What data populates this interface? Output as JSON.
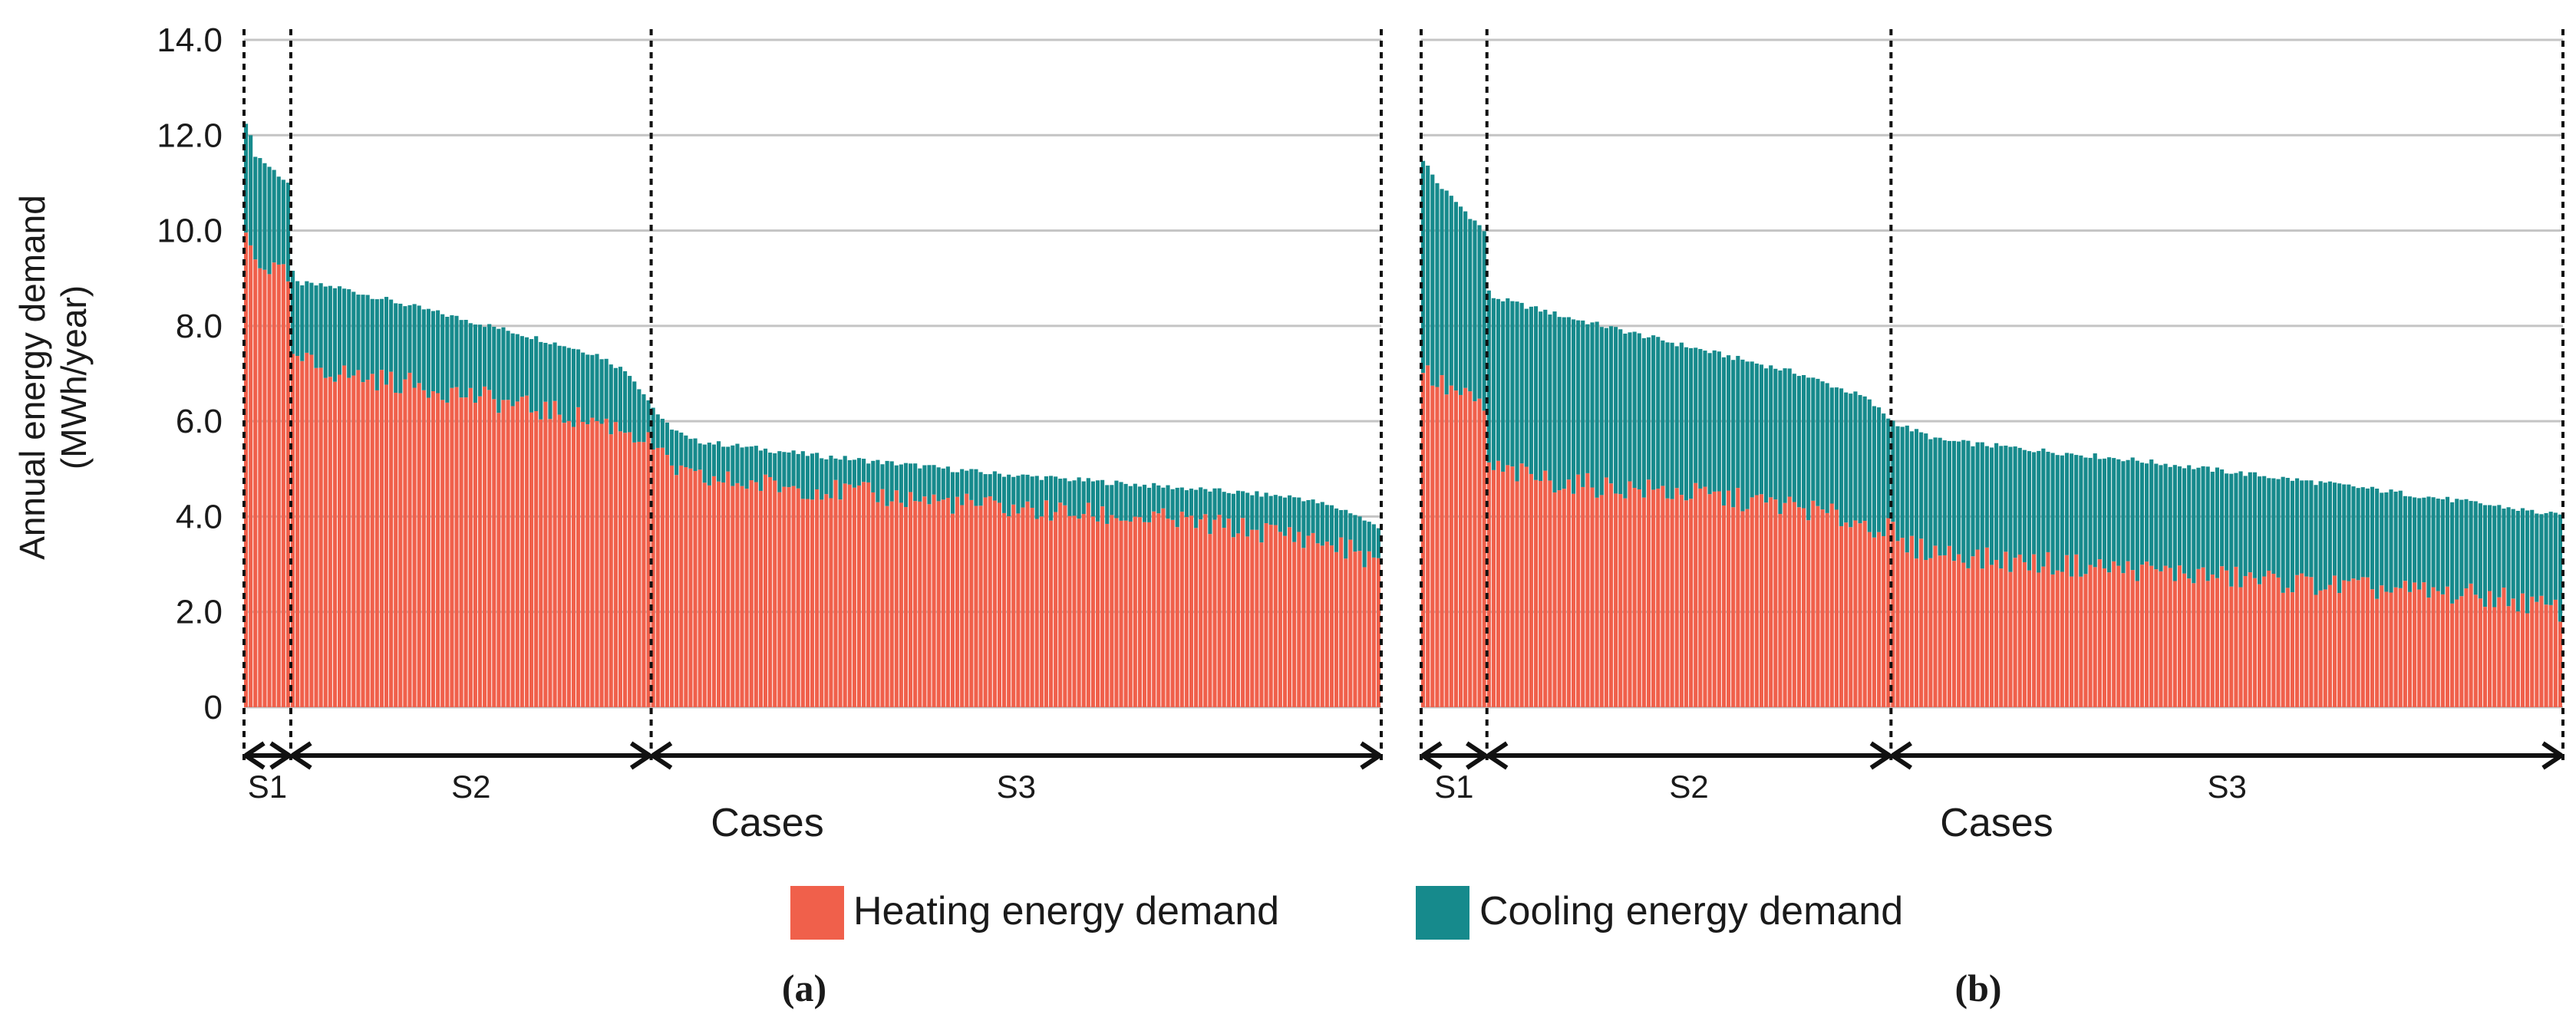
{
  "chart_data": {
    "type": "bar",
    "stacked": true,
    "ylabel_line1": "Annual energy demand",
    "ylabel_line2": "(MWh/year)",
    "ylim": [
      0,
      14
    ],
    "y_ticks": [
      0,
      2,
      4,
      6,
      8,
      10,
      12,
      14
    ],
    "y_tick_labels": [
      "0",
      "2.0",
      "4.0",
      "6.0",
      "8.0",
      "10.0",
      "12.0",
      "14.0"
    ],
    "xlabel": "Cases",
    "grid": true,
    "legend_position": "bottom-center",
    "series": [
      {
        "name": "Heating energy demand",
        "color": "#f0604b"
      },
      {
        "name": "Cooling energy demand",
        "color": "#168a8c"
      }
    ],
    "panels": [
      {
        "label": "(a)",
        "n_cases": 243,
        "segments": [
          {
            "label": "S1",
            "start": 0,
            "end": 10
          },
          {
            "label": "S2",
            "start": 10,
            "end": 87
          },
          {
            "label": "S3",
            "start": 87,
            "end": 243
          }
        ],
        "total_profile": [
          [
            0,
            12.3
          ],
          [
            2,
            11.6
          ],
          [
            9,
            11.0
          ],
          [
            10,
            9.1
          ],
          [
            11,
            8.9
          ],
          [
            20,
            8.8
          ],
          [
            40,
            8.3
          ],
          [
            60,
            7.8
          ],
          [
            75,
            7.4
          ],
          [
            82,
            7.0
          ],
          [
            87,
            6.3
          ],
          [
            89,
            6.0
          ],
          [
            95,
            5.6
          ],
          [
            120,
            5.3
          ],
          [
            160,
            4.9
          ],
          [
            200,
            4.6
          ],
          [
            225,
            4.4
          ],
          [
            236,
            4.1
          ],
          [
            243,
            3.7
          ]
        ],
        "heating_profile": [
          [
            0,
            9.9
          ],
          [
            2,
            9.4
          ],
          [
            9,
            9.0
          ],
          [
            10,
            7.2
          ],
          [
            11,
            7.3
          ],
          [
            20,
            7.0
          ],
          [
            40,
            6.7
          ],
          [
            60,
            6.3
          ],
          [
            75,
            6.0
          ],
          [
            82,
            5.8
          ],
          [
            87,
            5.5
          ],
          [
            89,
            5.2
          ],
          [
            95,
            4.8
          ],
          [
            120,
            4.6
          ],
          [
            160,
            4.2
          ],
          [
            200,
            3.9
          ],
          [
            225,
            3.6
          ],
          [
            236,
            3.3
          ],
          [
            243,
            3.0
          ]
        ]
      },
      {
        "label": "(b)",
        "n_cases": 243,
        "segments": [
          {
            "label": "S1",
            "start": 0,
            "end": 14
          },
          {
            "label": "S2",
            "start": 14,
            "end": 100
          },
          {
            "label": "S3",
            "start": 100,
            "end": 243
          }
        ],
        "total_profile": [
          [
            0,
            11.5
          ],
          [
            3,
            11.0
          ],
          [
            13,
            10.0
          ],
          [
            14,
            8.7
          ],
          [
            15,
            8.6
          ],
          [
            30,
            8.2
          ],
          [
            55,
            7.6
          ],
          [
            80,
            7.0
          ],
          [
            94,
            6.5
          ],
          [
            100,
            6.0
          ],
          [
            102,
            5.9
          ],
          [
            110,
            5.6
          ],
          [
            150,
            5.2
          ],
          [
            200,
            4.6
          ],
          [
            230,
            4.2
          ],
          [
            243,
            4.0
          ]
        ],
        "heating_profile": [
          [
            0,
            7.1
          ],
          [
            3,
            6.8
          ],
          [
            13,
            6.3
          ],
          [
            14,
            5.0
          ],
          [
            15,
            5.0
          ],
          [
            30,
            4.7
          ],
          [
            55,
            4.5
          ],
          [
            80,
            4.2
          ],
          [
            100,
            3.7
          ],
          [
            101,
            3.4
          ],
          [
            120,
            3.1
          ],
          [
            150,
            2.9
          ],
          [
            200,
            2.5
          ],
          [
            230,
            2.3
          ],
          [
            243,
            2.0
          ]
        ]
      }
    ]
  }
}
